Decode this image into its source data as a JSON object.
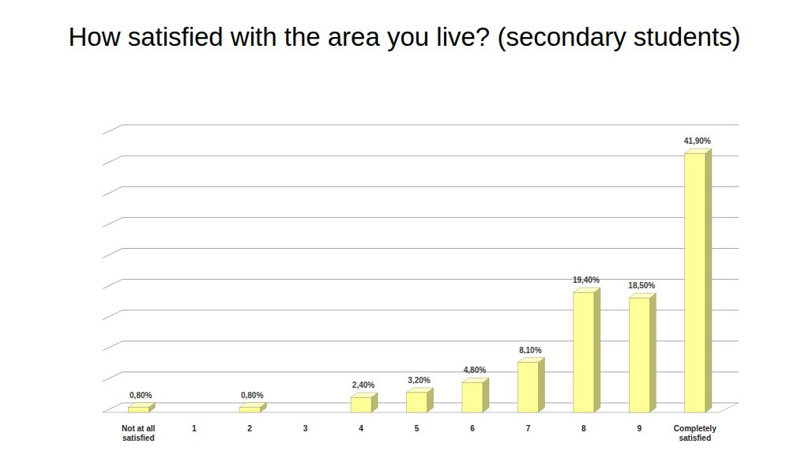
{
  "chart_data": {
    "type": "bar",
    "title": "How satisfied with the area you live? (secondary students)",
    "categories": [
      "Not at all satisfied",
      "1",
      "2",
      "3",
      "4",
      "5",
      "6",
      "7",
      "8",
      "9",
      "Completely satisfied"
    ],
    "values": [
      0.8,
      null,
      0.8,
      null,
      2.4,
      3.2,
      4.8,
      8.1,
      19.4,
      18.5,
      41.9
    ],
    "value_labels": [
      "0,80%",
      null,
      "0,80%",
      null,
      "2,40%",
      "3,20%",
      "4,80%",
      "8,10%",
      "19,40%",
      "18,50%",
      "41,90%"
    ],
    "color": "#ffff99",
    "ylim": [
      0,
      45
    ],
    "yticks": [
      0,
      5,
      10,
      15,
      20,
      25,
      30,
      35,
      40,
      45
    ],
    "grid": true,
    "data_labels": true,
    "tick_labels": "x"
  }
}
